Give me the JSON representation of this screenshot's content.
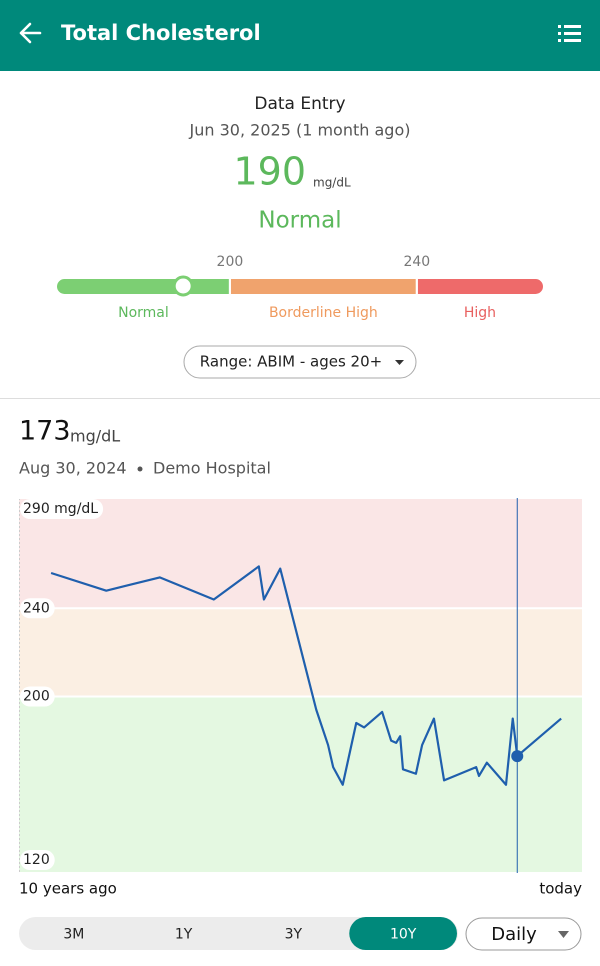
{
  "header": {
    "title": "Total Cholesterol"
  },
  "entry": {
    "heading": "Data Entry",
    "date": "Jun 30, 2025 (1 month ago)",
    "value": 190,
    "unit": "mg/dL",
    "status": "Normal"
  },
  "range_bar": {
    "scale": [
      163,
      267
    ],
    "thresholds": [
      200,
      240
    ],
    "zones": [
      {
        "name": "Normal",
        "color": "#7ccf73",
        "text_color": "#5cb85c"
      },
      {
        "name": "Borderline High",
        "color": "#f0a36d",
        "text_color": "#ef9a5e"
      },
      {
        "name": "High",
        "color": "#ee6a6a",
        "text_color": "#e8605f"
      }
    ],
    "selector": "Range: ABIM - ages 20+"
  },
  "reading": {
    "value": 173,
    "unit": "mg/dL",
    "date": "Aug 30, 2024",
    "source": "Demo Hospital"
  },
  "chart_data": {
    "type": "line",
    "x": [
      -9.43,
      -8.45,
      -7.5,
      -6.54,
      -5.74,
      -5.65,
      -5.36,
      -4.72,
      -4.51,
      -4.42,
      -4.25,
      -4.01,
      -3.87,
      -3.55,
      -3.39,
      -3.3,
      -3.23,
      -3.18,
      -2.95,
      -2.84,
      -2.63,
      -2.45,
      -1.88,
      -1.83,
      -1.69,
      -1.35,
      -1.23,
      -1.15,
      -0.37
    ],
    "series": [
      {
        "color": "#1f5fad",
        "values": [
          256,
          248,
          254,
          244,
          259,
          244,
          258,
          194,
          178,
          168,
          160,
          188,
          186,
          193,
          180,
          179,
          182,
          167,
          165,
          178,
          190,
          162,
          168,
          164,
          170,
          160,
          190,
          173,
          190
        ]
      }
    ],
    "xlim": [
      -10,
      0
    ],
    "xticks": [
      {
        "value": -10,
        "label": "10 years ago"
      },
      {
        "value": 0,
        "label": "today"
      }
    ],
    "ylim": [
      120,
      290
    ],
    "yticks": [
      {
        "value": 290,
        "label": "290 mg/dL"
      },
      240,
      200,
      120
    ],
    "band_colors": [
      "#fae6e6",
      "#fbefe3",
      "#e4f8e1"
    ],
    "highlight": 27
  },
  "controls": {
    "ranges": [
      "3M",
      "1Y",
      "3Y",
      "10Y"
    ],
    "selected": 3,
    "interval": "Daily"
  }
}
